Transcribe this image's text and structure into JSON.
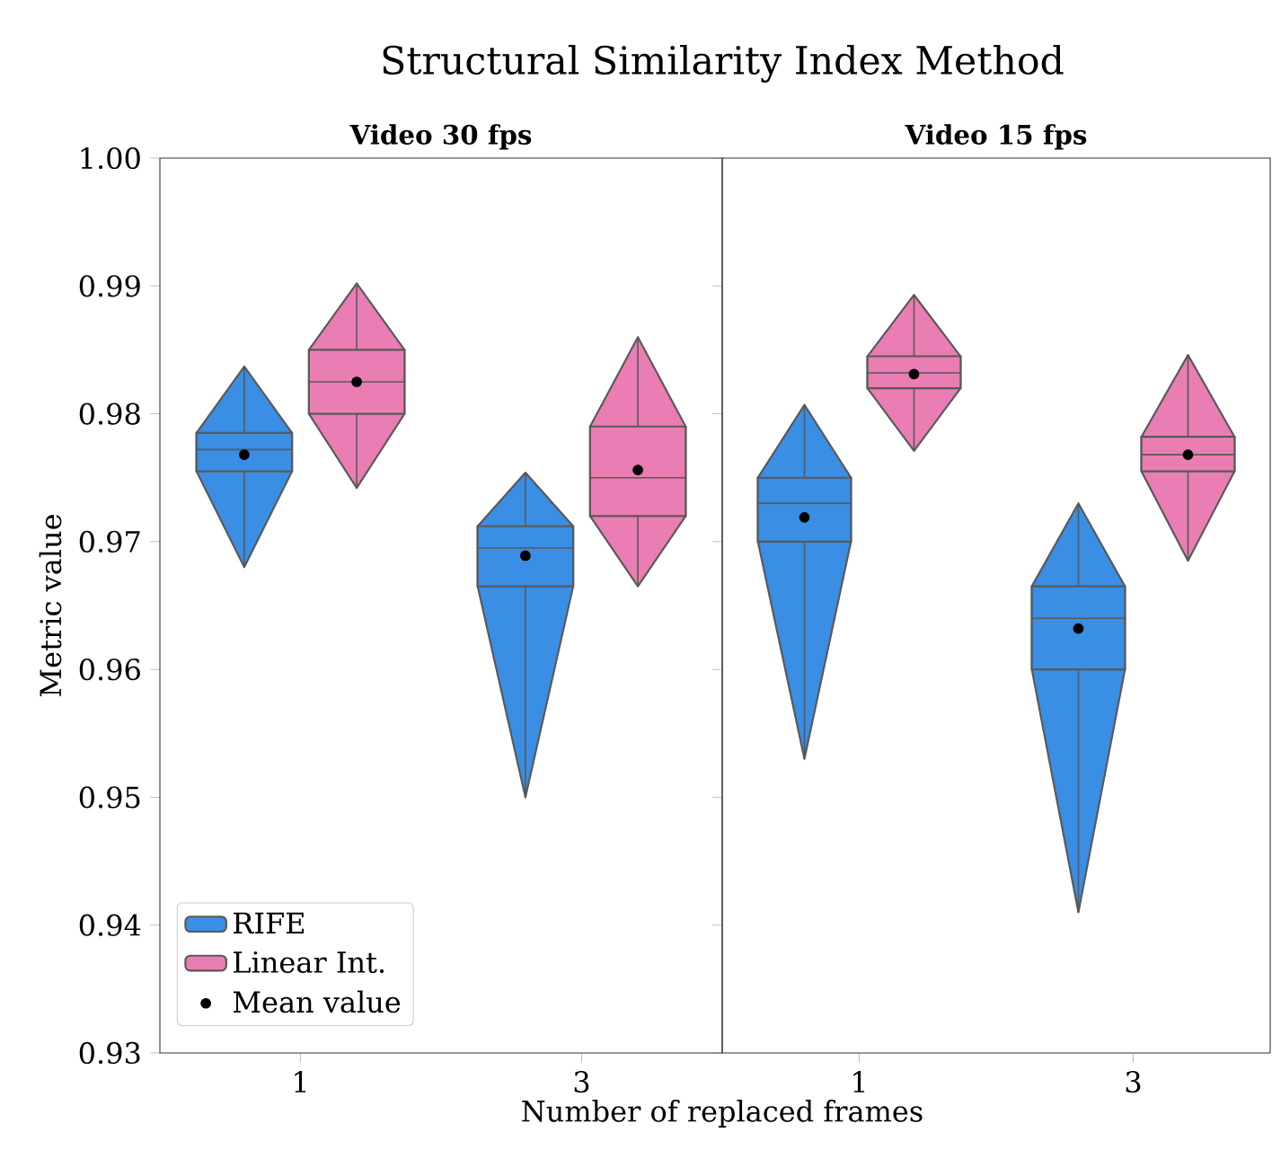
{
  "chart_data": [
    {
      "type": "box",
      "title": "Structural Similarity Index Method",
      "subtitle": "Video 30 fps",
      "xlabel": "Number of replaced frames",
      "ylabel": "Metric value",
      "categories": [
        "1",
        "3"
      ],
      "ylim": [
        0.93,
        1.0
      ],
      "yticks": [
        0.93,
        0.94,
        0.95,
        0.96,
        0.97,
        0.98,
        0.99,
        {
          "value": 1.0,
          "label": "1.00"
        }
      ],
      "legend": "bottom left",
      "annotations": [
        "Mean value"
      ],
      "series": [
        {
          "name": "RIFE",
          "color": "#3a8ee3",
          "boxes": [
            {
              "low": 0.968,
              "q1": 0.9755,
              "median": 0.9772,
              "q3": 0.9785,
              "high": 0.9837,
              "mean": 0.9768
            },
            {
              "low": 0.95,
              "q1": 0.9665,
              "median": 0.9695,
              "q3": 0.9712,
              "high": 0.9754,
              "mean": 0.9689
            }
          ]
        },
        {
          "name": "Linear Int.",
          "color": "#ea7db3",
          "boxes": [
            {
              "low": 0.9742,
              "q1": 0.98,
              "median": 0.9825,
              "q3": 0.985,
              "high": 0.9902,
              "mean": 0.9825
            },
            {
              "low": 0.9665,
              "q1": 0.972,
              "median": 0.975,
              "q3": 0.979,
              "high": 0.986,
              "mean": 0.9756
            }
          ]
        }
      ]
    },
    {
      "type": "box",
      "title": "Video 15 fps",
      "categories": [
        "1",
        "3"
      ],
      "ylim": [
        0.93,
        1.0
      ],
      "yticks": [
        0.93,
        0.94,
        0.95,
        0.96,
        0.97,
        0.98,
        0.99,
        1.0
      ],
      "tick_labels": "x",
      "series": [
        {
          "color": "#3a8ee3",
          "boxes": [
            {
              "low": 0.953,
              "q1": 0.97,
              "median": 0.973,
              "q3": 0.975,
              "high": 0.9807,
              "mean": 0.9719
            },
            {
              "low": 0.941,
              "q1": 0.96,
              "median": 0.964,
              "q3": 0.9665,
              "high": 0.973,
              "mean": 0.9632
            }
          ]
        },
        {
          "color": "#ea7db3",
          "boxes": [
            {
              "low": 0.9771,
              "q1": 0.982,
              "median": 0.9832,
              "q3": 0.9845,
              "high": 0.9893,
              "mean": 0.9831
            },
            {
              "low": 0.9685,
              "q1": 0.9755,
              "median": 0.9768,
              "q3": 0.9782,
              "high": 0.9846,
              "mean": 0.9768
            }
          ]
        }
      ]
    }
  ]
}
